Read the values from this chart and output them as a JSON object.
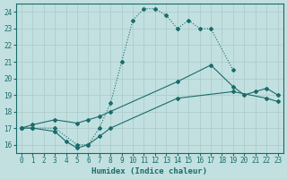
{
  "xlabel": "Humidex (Indice chaleur)",
  "xlim": [
    -0.5,
    23.5
  ],
  "ylim": [
    15.5,
    24.5
  ],
  "xticks": [
    0,
    1,
    2,
    3,
    4,
    5,
    6,
    7,
    8,
    9,
    10,
    11,
    12,
    13,
    14,
    15,
    16,
    17,
    18,
    19,
    20,
    21,
    22,
    23
  ],
  "yticks": [
    16,
    17,
    18,
    19,
    20,
    21,
    22,
    23,
    24
  ],
  "bg_color": "#c2e0e0",
  "line_color": "#1a6b6b",
  "grid_color": "#b0cccc",
  "line1_x": [
    0,
    1,
    3,
    5,
    6,
    7,
    8,
    9,
    10,
    11,
    12,
    13,
    14,
    15,
    16,
    17,
    19
  ],
  "line1_y": [
    17.0,
    17.0,
    17.0,
    16.0,
    16.0,
    17.0,
    18.5,
    21.0,
    23.5,
    24.2,
    24.2,
    23.8,
    23.0,
    23.5,
    23.0,
    23.0,
    20.5
  ],
  "line2_x": [
    0,
    1,
    3,
    5,
    6,
    7,
    8,
    14,
    17,
    19,
    20,
    21,
    22,
    23
  ],
  "line2_y": [
    17.0,
    17.2,
    17.5,
    17.3,
    17.5,
    17.7,
    18.0,
    19.8,
    20.8,
    19.5,
    19.0,
    19.2,
    19.4,
    19.0
  ],
  "line3_x": [
    0,
    1,
    3,
    4,
    5,
    6,
    7,
    8,
    14,
    19,
    22,
    23
  ],
  "line3_y": [
    17.0,
    17.0,
    16.8,
    16.2,
    15.8,
    16.0,
    16.5,
    17.0,
    18.8,
    19.2,
    18.8,
    18.6
  ]
}
